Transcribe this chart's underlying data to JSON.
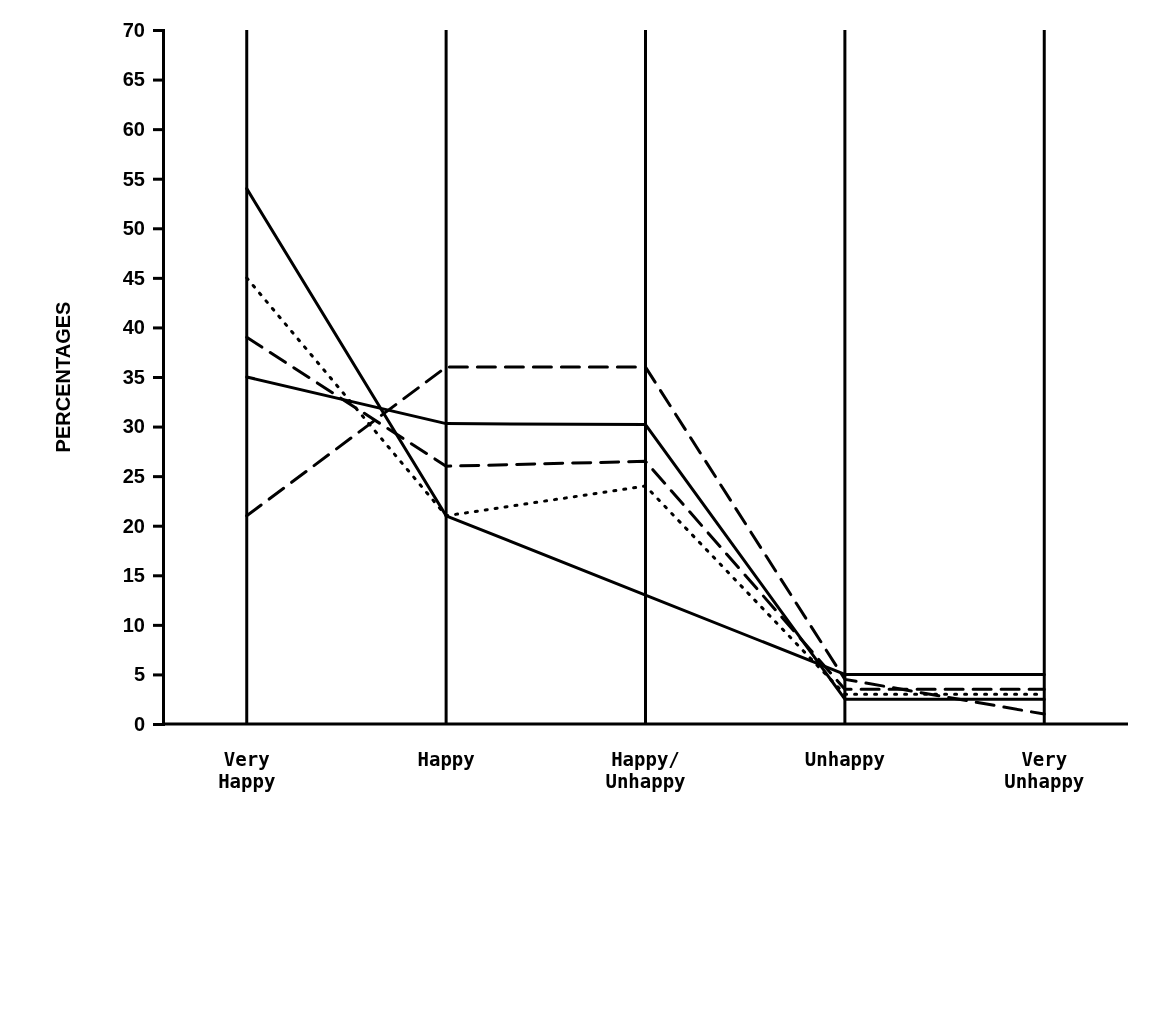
{
  "chart_data": {
    "type": "line",
    "ylabel": "PERCENTAGES",
    "categories": [
      "Very Happy",
      "Happy",
      "Happy/Unhappy",
      "Unhappy",
      "Very Unhappy"
    ],
    "ylim": [
      0,
      70
    ],
    "yticks": [
      0,
      5,
      10,
      15,
      20,
      25,
      30,
      35,
      40,
      45,
      50,
      55,
      60,
      65,
      70
    ],
    "grid": "x",
    "series": [
      {
        "color": "#000000",
        "line_style": "solid",
        "values": [
          54,
          21,
          13,
          5,
          5
        ]
      },
      {
        "color": "#000000",
        "line_style": "dotted",
        "values": [
          45,
          21,
          24,
          3,
          3
        ]
      },
      {
        "color": "#000000",
        "line_style": "dashed",
        "values": [
          39,
          26,
          26.5,
          3.5,
          3.5
        ]
      },
      {
        "color": "#000000",
        "line_style": "solid",
        "values": [
          35,
          30.3,
          30.2,
          2.5,
          2.5
        ]
      },
      {
        "color": "#000000",
        "line_style": "dashed",
        "values": [
          21,
          36,
          36,
          4.5,
          1
        ]
      }
    ]
  }
}
